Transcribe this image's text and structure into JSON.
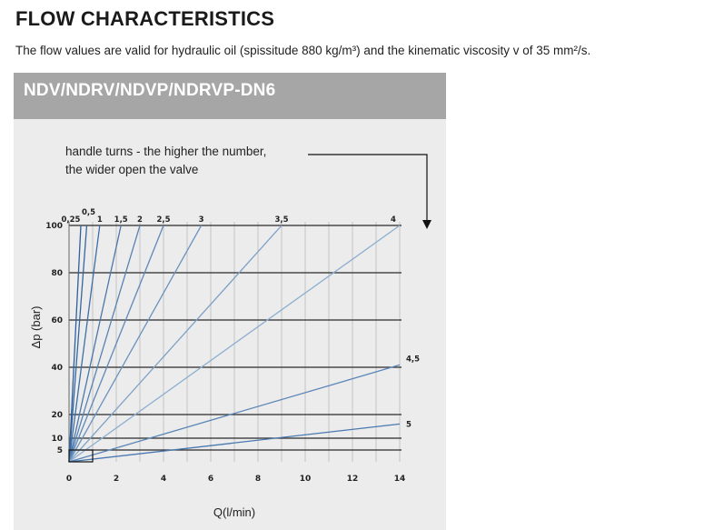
{
  "page": {
    "title": "FLOW CHARACTERISTICS",
    "subtitle": "The flow values are valid for hydraulic oil (spissitude 880 kg/m³) and the kinematic viscosity v of 35 mm²/s."
  },
  "panel": {
    "title": "NDV/NDRV/NDVP/NDRVP-DN6",
    "note_line1": "handle turns - the higher the number,",
    "note_line2": "the wider open the valve"
  },
  "chart_data": {
    "type": "line",
    "xlabel": "Q(l/min)",
    "ylabel": "Δp (bar)",
    "xlim": [
      0,
      14
    ],
    "ylim": [
      0,
      100
    ],
    "x_ticks": [
      0,
      2,
      4,
      6,
      8,
      10,
      12,
      14
    ],
    "y_ticks": [
      5,
      10,
      20,
      40,
      60,
      80,
      100
    ],
    "x_tick_labels": [
      "0",
      "2",
      "4",
      "6",
      "8",
      "10",
      "12",
      "14"
    ],
    "y_tick_labels": [
      "5",
      "10",
      "20",
      "40",
      "60",
      "80",
      "100"
    ],
    "y_gridlines": [
      5,
      10,
      20,
      40,
      60,
      80,
      100
    ],
    "x_gridlines": [
      0,
      1,
      2,
      3,
      4,
      5,
      6,
      7,
      8,
      9,
      10,
      11,
      12,
      13,
      14
    ],
    "series": [
      {
        "name": "0,25",
        "x": [
          0,
          0.5
        ],
        "y": [
          0,
          100
        ]
      },
      {
        "name": "0,5",
        "x": [
          0,
          0.75
        ],
        "y": [
          0,
          100
        ]
      },
      {
        "name": "1",
        "x": [
          0,
          1.3
        ],
        "y": [
          0,
          100
        ]
      },
      {
        "name": "1,5",
        "x": [
          0,
          2.2
        ],
        "y": [
          0,
          100
        ]
      },
      {
        "name": "2",
        "x": [
          0,
          3.0
        ],
        "y": [
          0,
          100
        ]
      },
      {
        "name": "2,5",
        "x": [
          0,
          4.0
        ],
        "y": [
          0,
          100
        ]
      },
      {
        "name": "3",
        "x": [
          0,
          5.6
        ],
        "y": [
          0,
          100
        ]
      },
      {
        "name": "3,5",
        "x": [
          0,
          9.0
        ],
        "y": [
          0,
          100
        ]
      },
      {
        "name": "4",
        "x": [
          0,
          14.0
        ],
        "y": [
          0,
          100
        ]
      },
      {
        "name": "4,5",
        "x": [
          0,
          14.0
        ],
        "y": [
          0,
          41
        ]
      },
      {
        "name": "5",
        "x": [
          0,
          14.0
        ],
        "y": [
          0,
          16
        ]
      }
    ],
    "highlight_box": {
      "x": [
        0,
        1
      ],
      "y": [
        0,
        5
      ]
    },
    "grid": true
  },
  "style": {
    "panel_bg": "#ececec",
    "header_bg": "#a6a6a6",
    "series_colors": [
      "#2f5f9c",
      "#35679f",
      "#3d6fa6",
      "#4a78ab",
      "#5682b2",
      "#5f88b7",
      "#6a92bd",
      "#7ea1c6",
      "#8eaed0",
      "#5c86b8",
      "#4a78b0"
    ]
  }
}
